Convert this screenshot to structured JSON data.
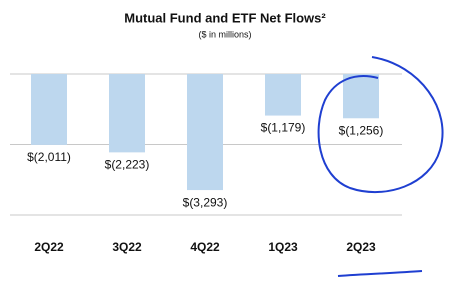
{
  "chart_data": {
    "type": "bar",
    "title": "Mutual Fund and ETF Net Flows²",
    "subtitle": "($ in millions)",
    "categories": [
      "2Q22",
      "3Q22",
      "4Q22",
      "1Q23",
      "2Q23"
    ],
    "values": [
      -2011,
      -2223,
      -3293,
      -1179,
      -1256
    ],
    "value_labels": [
      "$(2,011)",
      "$(2,223)",
      "$(3,293)",
      "$(1,179)",
      "$(1,256)"
    ],
    "color": "#bdd7ee",
    "ylim": [
      -4000,
      0
    ],
    "yticks": [
      0,
      -2000,
      -4000
    ],
    "grid": true
  }
}
